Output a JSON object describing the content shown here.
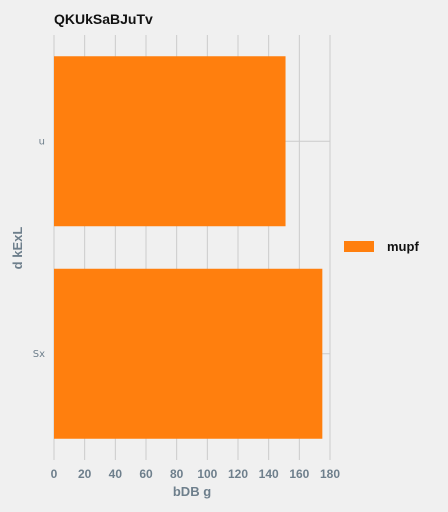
{
  "chart_data": {
    "type": "bar",
    "orientation": "horizontal",
    "title": "QKUkSaBJuTv",
    "xlabel": "bDB g",
    "ylabel": "d kExL",
    "categories": [
      "u",
      "Sx"
    ],
    "series": [
      {
        "name": "mupf",
        "values": [
          151,
          175
        ],
        "color": "#ff7f0e"
      }
    ],
    "xlim": [
      0,
      180
    ],
    "xticks": [
      0,
      20,
      40,
      60,
      80,
      100,
      120,
      140,
      160,
      180
    ],
    "grid": true,
    "legend_position": "right",
    "background": "#f0f0f0"
  }
}
